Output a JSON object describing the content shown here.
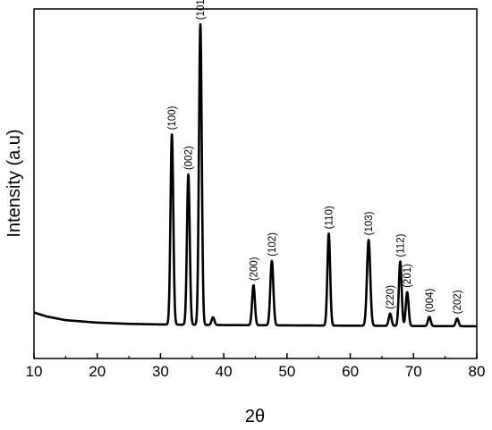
{
  "chart_data": {
    "type": "line",
    "title": "",
    "xlabel": "2θ",
    "ylabel": "Intensity (a.u)",
    "xlim": [
      10,
      80
    ],
    "xticks": [
      10,
      20,
      30,
      40,
      50,
      60,
      70,
      80
    ],
    "xtick_labels": [
      "10",
      "20",
      "30",
      "40",
      "50",
      "60",
      "70",
      "80"
    ],
    "yticks": "none",
    "grid": false,
    "legend": "none",
    "line_color": "#000000",
    "background": {
      "points": [
        [
          10,
          0.045
        ],
        [
          12,
          0.032
        ],
        [
          15,
          0.02
        ],
        [
          20,
          0.012
        ],
        [
          25,
          0.008
        ],
        [
          30,
          0.006
        ],
        [
          35,
          0.005
        ],
        [
          40,
          0.004
        ],
        [
          50,
          0.003
        ],
        [
          60,
          0.002
        ],
        [
          70,
          0.001
        ],
        [
          80,
          0.0
        ]
      ]
    },
    "peaks": [
      {
        "label": "(100)",
        "x": 31.8,
        "height": 0.62,
        "width": 0.22
      },
      {
        "label": "(002)",
        "x": 34.4,
        "height": 0.49,
        "width": 0.22
      },
      {
        "label": "(101)",
        "x": 36.3,
        "height": 0.98,
        "width": 0.22
      },
      {
        "label": "",
        "x": 38.3,
        "height": 0.025,
        "width": 0.22
      },
      {
        "label": "(200)",
        "x": 44.7,
        "height": 0.13,
        "width": 0.22
      },
      {
        "label": "(102)",
        "x": 47.6,
        "height": 0.21,
        "width": 0.24
      },
      {
        "label": "(110)",
        "x": 56.6,
        "height": 0.3,
        "width": 0.22
      },
      {
        "label": "(103)",
        "x": 62.9,
        "height": 0.28,
        "width": 0.26
      },
      {
        "label": "(220)",
        "x": 66.3,
        "height": 0.04,
        "width": 0.22
      },
      {
        "label": "(112)",
        "x": 67.9,
        "height": 0.21,
        "width": 0.22
      },
      {
        "label": "(201)",
        "x": 69.0,
        "height": 0.11,
        "width": 0.22
      },
      {
        "label": "(004)",
        "x": 72.5,
        "height": 0.03,
        "width": 0.22
      },
      {
        "label": "(202)",
        "x": 76.9,
        "height": 0.025,
        "width": 0.22
      }
    ]
  }
}
